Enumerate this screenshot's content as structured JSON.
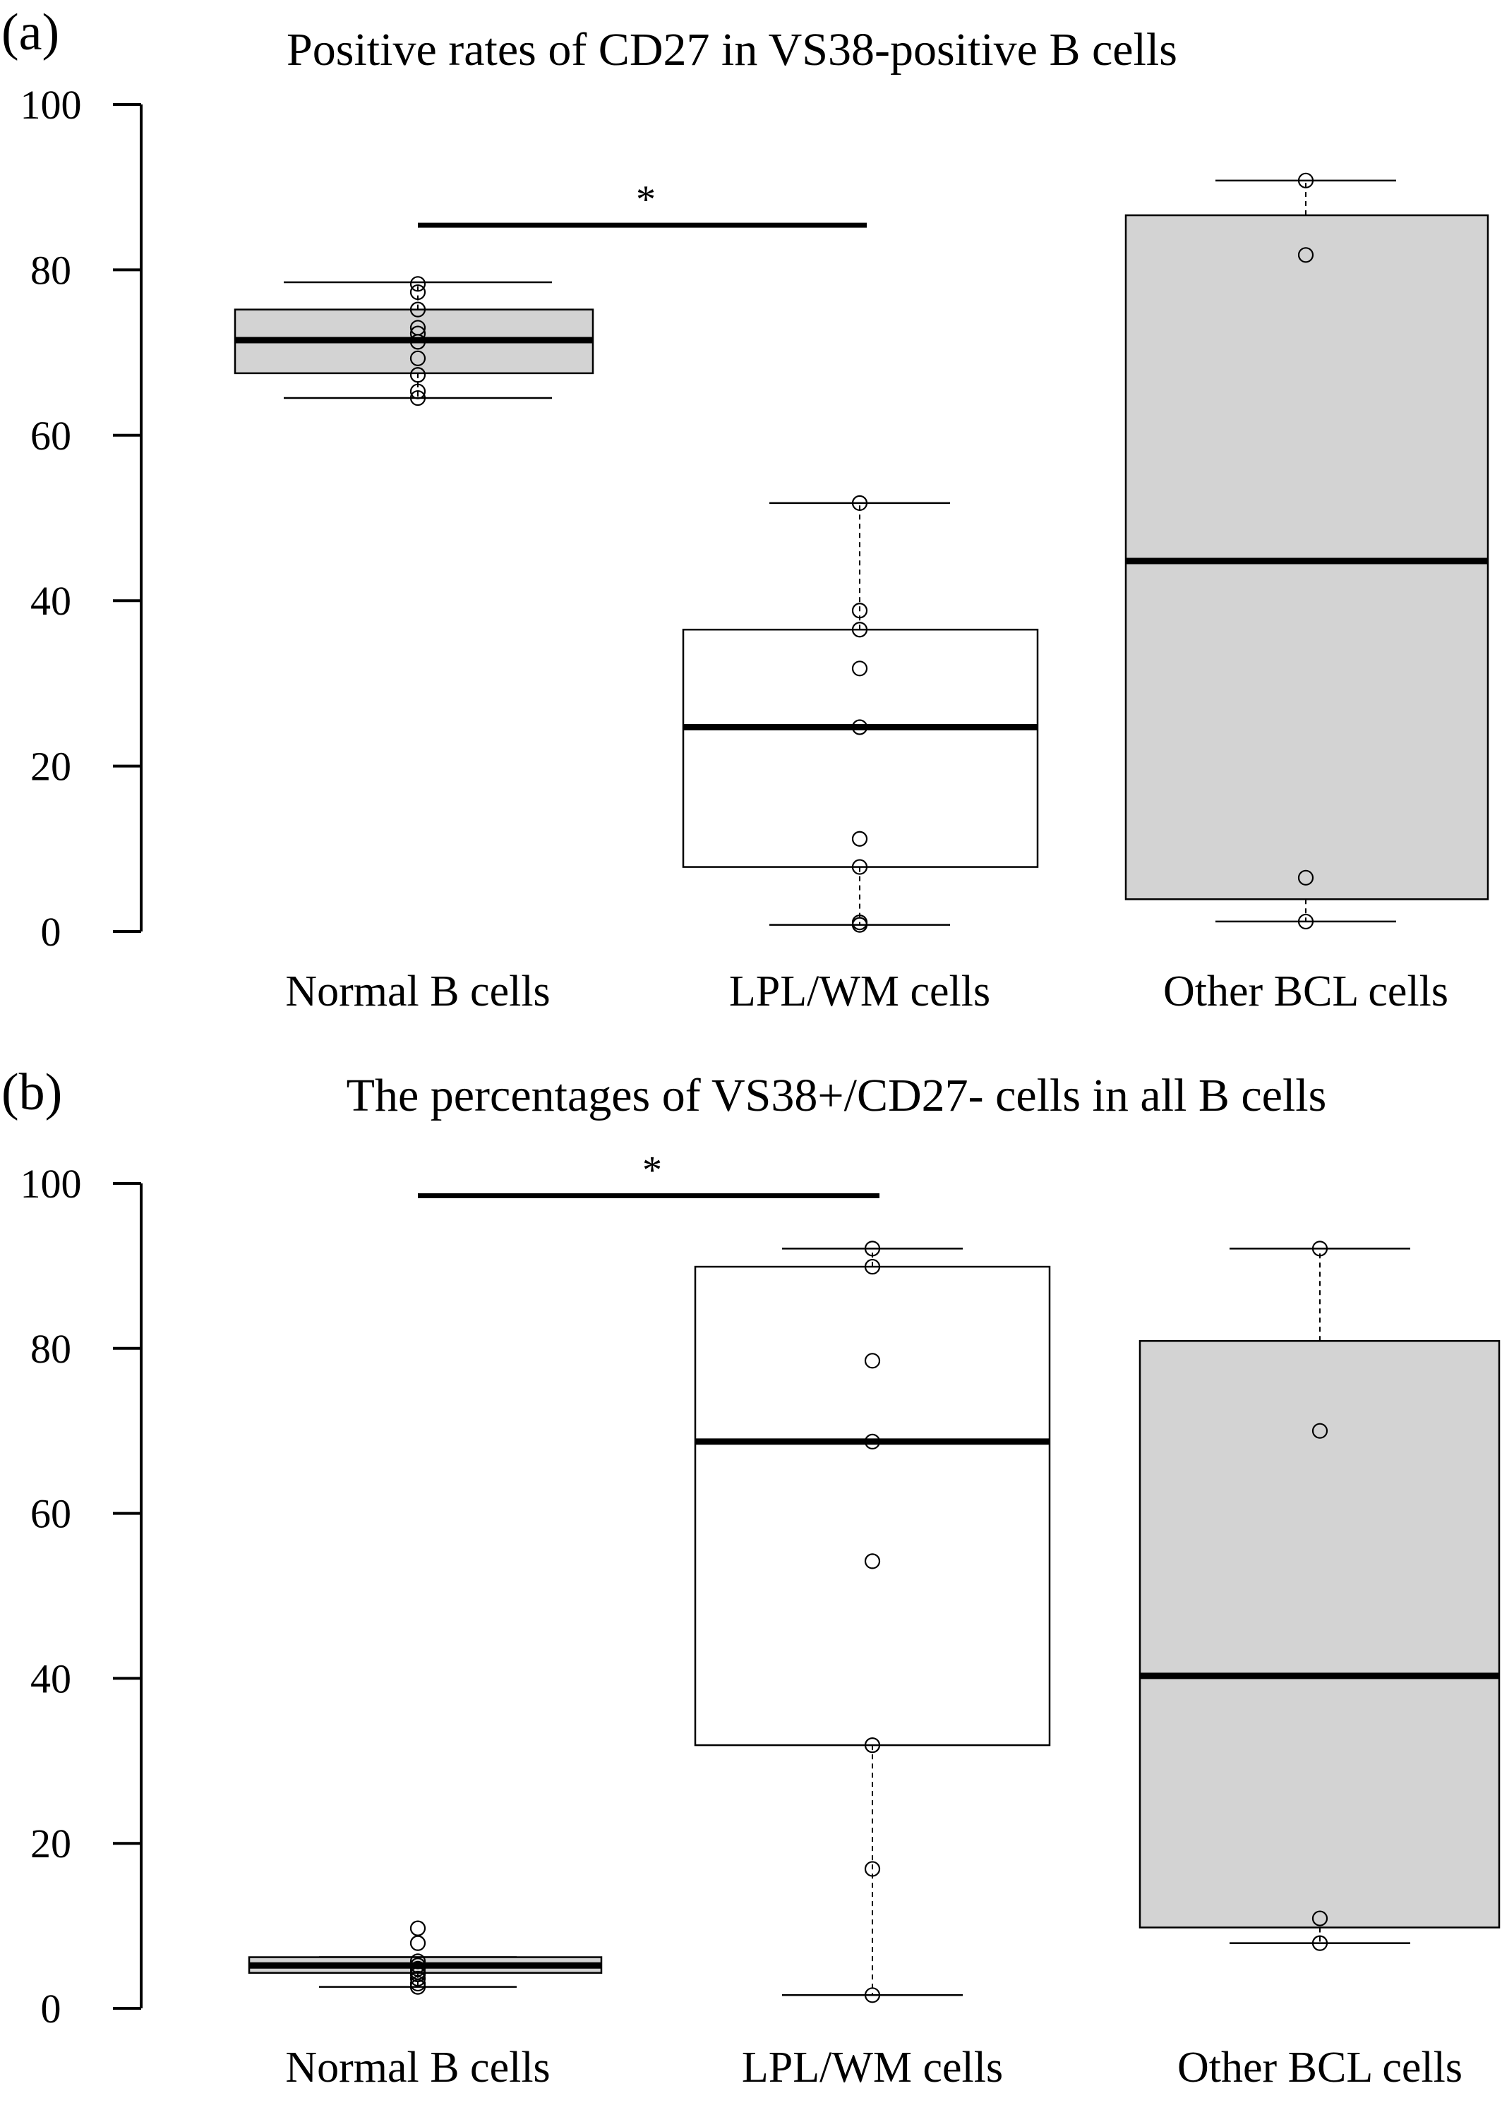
{
  "chart_data": [
    {
      "panel": "(a)",
      "type": "box",
      "title": "Positive rates of CD27 in VS38-positive B cells",
      "xlabel": "",
      "ylabel": "",
      "ylim": [
        0,
        100
      ],
      "yticks": [
        "0",
        "20",
        "40",
        "60",
        "80",
        "100"
      ],
      "categories": [
        "Normal B cells",
        "LPL/WM cells",
        "Other BCL cells"
      ],
      "box_fill": [
        "#d3d3d3",
        "#ffffff",
        "#d3d3d3"
      ],
      "boxes": [
        {
          "whisker_low": 64.5,
          "q1": 67.5,
          "median": 71.5,
          "q3": 75.2,
          "whisker_high": 78.5
        },
        {
          "whisker_low": 0.8,
          "q1": 7.8,
          "median": 24.7,
          "q3": 36.5,
          "whisker_high": 51.8
        },
        {
          "whisker_low": 1.2,
          "q1": 3.9,
          "median": 44.8,
          "q3": 86.6,
          "whisker_high": 90.8
        }
      ],
      "points": [
        [
          64.5,
          65.3,
          67.3,
          69.3,
          71.3,
          72.3,
          73.0,
          75.2,
          77.3,
          78.3
        ],
        [
          0.8,
          1.1,
          7.8,
          11.2,
          24.7,
          31.8,
          36.5,
          38.8,
          51.8
        ],
        [
          1.2,
          6.5,
          81.8,
          90.8
        ]
      ],
      "significance": {
        "from": 0,
        "to": 1,
        "label": "*",
        "y": 85.4
      }
    },
    {
      "panel": "(b)",
      "type": "box",
      "title": "The percentages of VS38+/CD27- cells in all B cells",
      "xlabel": "",
      "ylabel": "",
      "ylim": [
        0,
        100
      ],
      "yticks": [
        "0",
        "20",
        "40",
        "60",
        "80",
        "100"
      ],
      "categories": [
        "Normal B cells",
        "LPL/WM cells",
        "Other BCL cells"
      ],
      "box_fill": [
        "#d3d3d3",
        "#ffffff",
        "#d3d3d3"
      ],
      "boxes": [
        {
          "whisker_low": 2.6,
          "q1": 4.3,
          "median": 5.2,
          "q3": 6.2,
          "whisker_high": 6.2
        },
        {
          "whisker_low": 1.6,
          "q1": 31.9,
          "median": 68.7,
          "q3": 89.9,
          "whisker_high": 92.1
        },
        {
          "whisker_low": 7.9,
          "q1": 9.8,
          "median": 40.3,
          "q3": 80.9,
          "whisker_high": 92.1
        }
      ],
      "points": [
        [
          2.6,
          3.0,
          3.6,
          4.1,
          4.4,
          4.8,
          5.2,
          5.7,
          7.9,
          9.7
        ],
        [
          1.6,
          16.9,
          31.9,
          54.2,
          68.7,
          78.5,
          89.9,
          92.1
        ],
        [
          7.9,
          10.9,
          70.0,
          92.1
        ]
      ],
      "significance": {
        "from": 0,
        "to": 1,
        "label": "*",
        "y": 98.5
      }
    }
  ]
}
